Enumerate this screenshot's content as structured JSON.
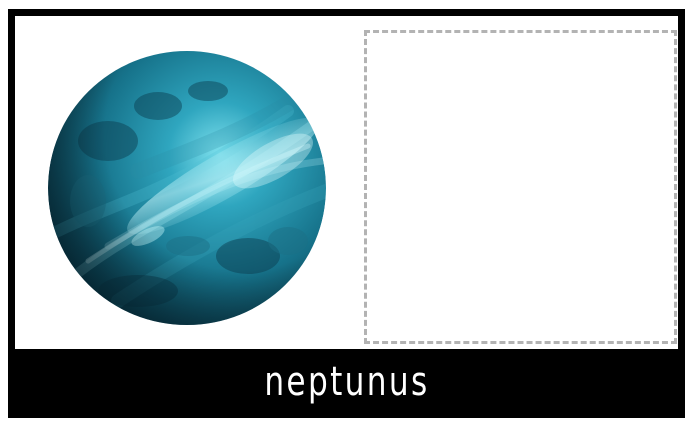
{
  "card": {
    "label": "neptunus",
    "image": "neptune-planet",
    "drop_target": "empty-dashed-box"
  },
  "colors": {
    "frame": "#000000",
    "panel": "#ffffff",
    "dash": "#b3b3b3",
    "planet_dark": "#0b3f52",
    "planet_mid": "#1c7f98",
    "planet_light": "#6fd6e6"
  }
}
